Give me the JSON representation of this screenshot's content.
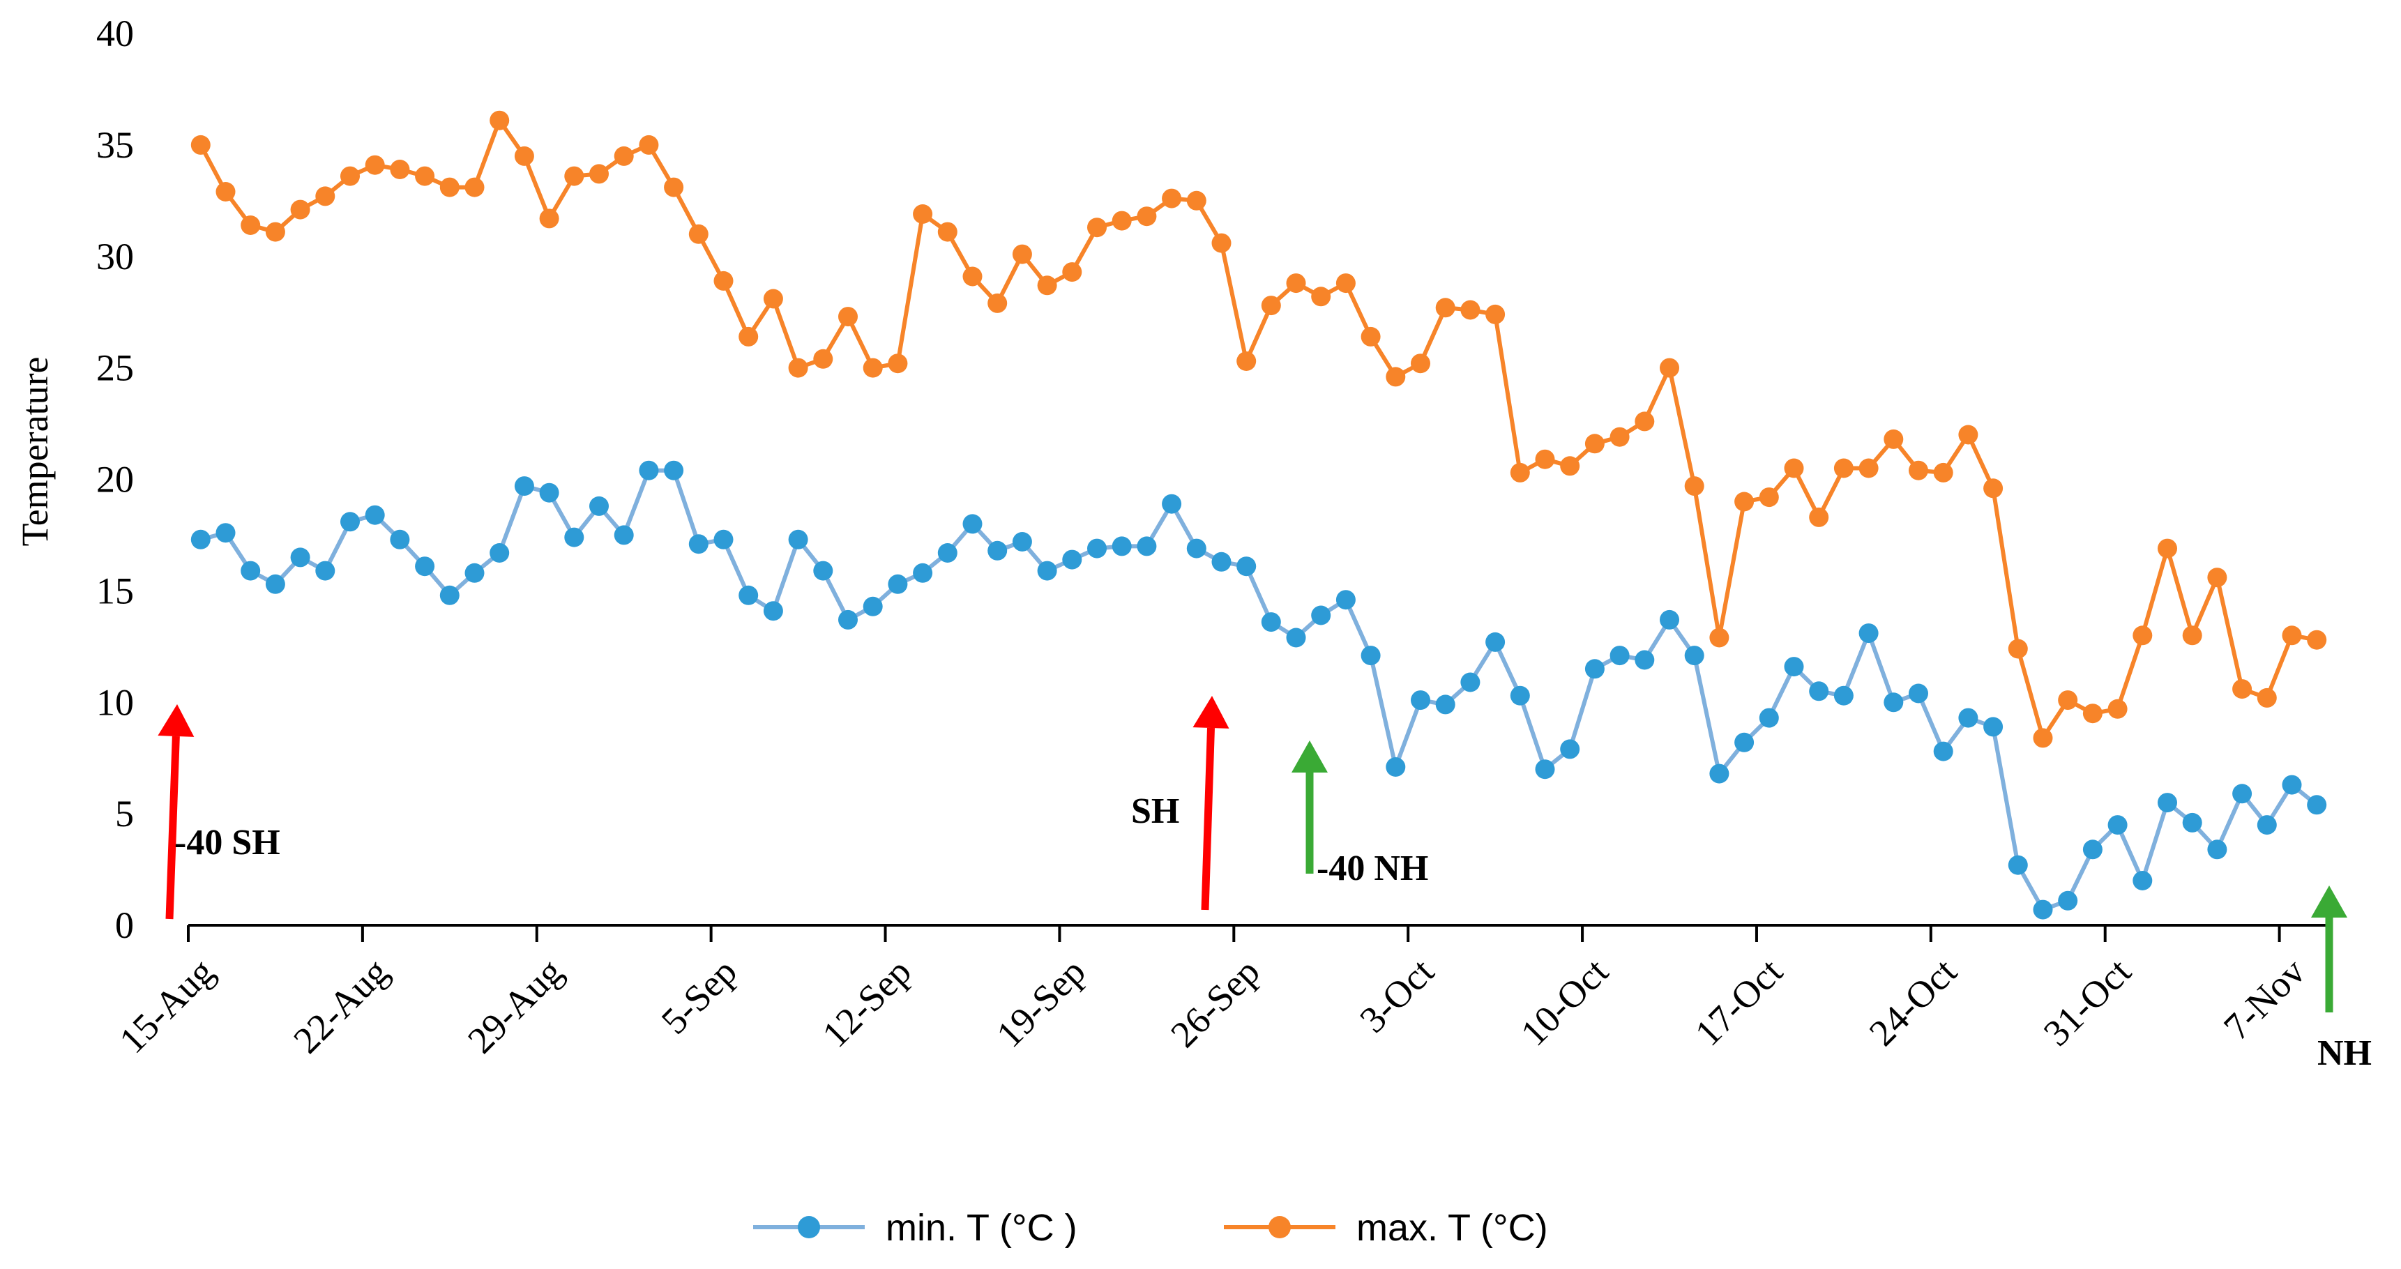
{
  "chart_data": {
    "type": "line",
    "title": "",
    "xlabel": "",
    "ylabel": "Temperature",
    "ylim": [
      0,
      40
    ],
    "yticks": [
      0,
      5,
      10,
      15,
      20,
      25,
      30,
      35,
      40
    ],
    "grid": false,
    "legend_position": "bottom-center",
    "x_start_label": "15-Aug",
    "x_tick_labels": [
      {
        "day": 0,
        "label": "15-Aug"
      },
      {
        "day": 7,
        "label": "22-Aug"
      },
      {
        "day": 14,
        "label": "29-Aug"
      },
      {
        "day": 21,
        "label": "5-Sep"
      },
      {
        "day": 28,
        "label": "12-Sep"
      },
      {
        "day": 35,
        "label": "19-Sep"
      },
      {
        "day": 42,
        "label": "26-Sep"
      },
      {
        "day": 49,
        "label": "3-Oct"
      },
      {
        "day": 56,
        "label": "10-Oct"
      },
      {
        "day": 63,
        "label": "17-Oct"
      },
      {
        "day": 70,
        "label": "24-Oct"
      },
      {
        "day": 77,
        "label": "31-Oct"
      },
      {
        "day": 84,
        "label": "7-Nov"
      }
    ],
    "x_days_start": 0.5,
    "x_days_step": 1,
    "series": [
      {
        "name": "min. T (°C )",
        "color": "#2e9bd6",
        "line_color": "#7fb0dd",
        "values": [
          17.3,
          17.6,
          15.9,
          15.3,
          16.5,
          15.9,
          18.1,
          18.4,
          17.3,
          16.1,
          14.8,
          15.8,
          16.7,
          19.7,
          19.4,
          17.4,
          18.8,
          17.5,
          20.4,
          20.4,
          17.1,
          17.3,
          14.8,
          14.1,
          17.3,
          15.9,
          13.7,
          14.3,
          15.3,
          15.8,
          16.7,
          18.0,
          16.8,
          17.2,
          15.9,
          16.4,
          16.9,
          17.0,
          17.0,
          18.9,
          16.9,
          16.3,
          16.1,
          13.6,
          12.9,
          13.9,
          14.6,
          12.1,
          7.1,
          10.1,
          9.9,
          10.9,
          12.7,
          10.3,
          7.0,
          7.9,
          11.5,
          12.1,
          11.9,
          13.7,
          12.1,
          6.8,
          8.2,
          9.3,
          11.6,
          10.5,
          10.3,
          13.1,
          10.0,
          10.4,
          7.8,
          9.3,
          8.9,
          2.7,
          0.7,
          1.1,
          3.4,
          4.5,
          2.0,
          5.5,
          4.6,
          3.4,
          5.9,
          4.5,
          6.3,
          5.4
        ]
      },
      {
        "name": "max. T (°C)",
        "color": "#f78429",
        "line_color": "#f78429",
        "values": [
          35.0,
          32.9,
          31.4,
          31.1,
          32.1,
          32.7,
          33.6,
          34.1,
          33.9,
          33.6,
          33.1,
          33.1,
          36.1,
          34.5,
          31.7,
          33.6,
          33.7,
          34.5,
          35.0,
          33.1,
          31.0,
          28.9,
          26.4,
          28.1,
          25.0,
          25.4,
          27.3,
          25.0,
          25.2,
          31.9,
          31.1,
          29.1,
          27.9,
          30.1,
          28.7,
          29.3,
          31.3,
          31.6,
          31.8,
          32.6,
          32.5,
          30.6,
          25.3,
          27.8,
          28.8,
          28.2,
          28.8,
          26.4,
          24.6,
          25.2,
          27.7,
          27.6,
          27.4,
          20.3,
          20.9,
          20.6,
          21.6,
          21.9,
          22.6,
          25.0,
          19.7,
          12.9,
          19.0,
          19.2,
          20.5,
          18.3,
          20.5,
          20.5,
          21.8,
          20.4,
          20.3,
          22.0,
          19.6,
          12.4,
          8.4,
          10.1,
          9.5,
          9.7,
          13.0,
          16.9,
          13.0,
          15.6,
          10.6,
          10.2,
          13.0,
          12.8
        ]
      }
    ],
    "annotations": [
      {
        "text": "-40 SH",
        "arrow_color": "#ff0000",
        "kind": "red-arrow"
      },
      {
        "text": "SH",
        "arrow_color": "#ff0000",
        "kind": "red-arrow"
      },
      {
        "text": "-40 NH",
        "arrow_color": "#3aaa35",
        "kind": "green-arrow"
      },
      {
        "text": "NH",
        "arrow_color": "#3aaa35",
        "kind": "green-arrow"
      }
    ]
  }
}
